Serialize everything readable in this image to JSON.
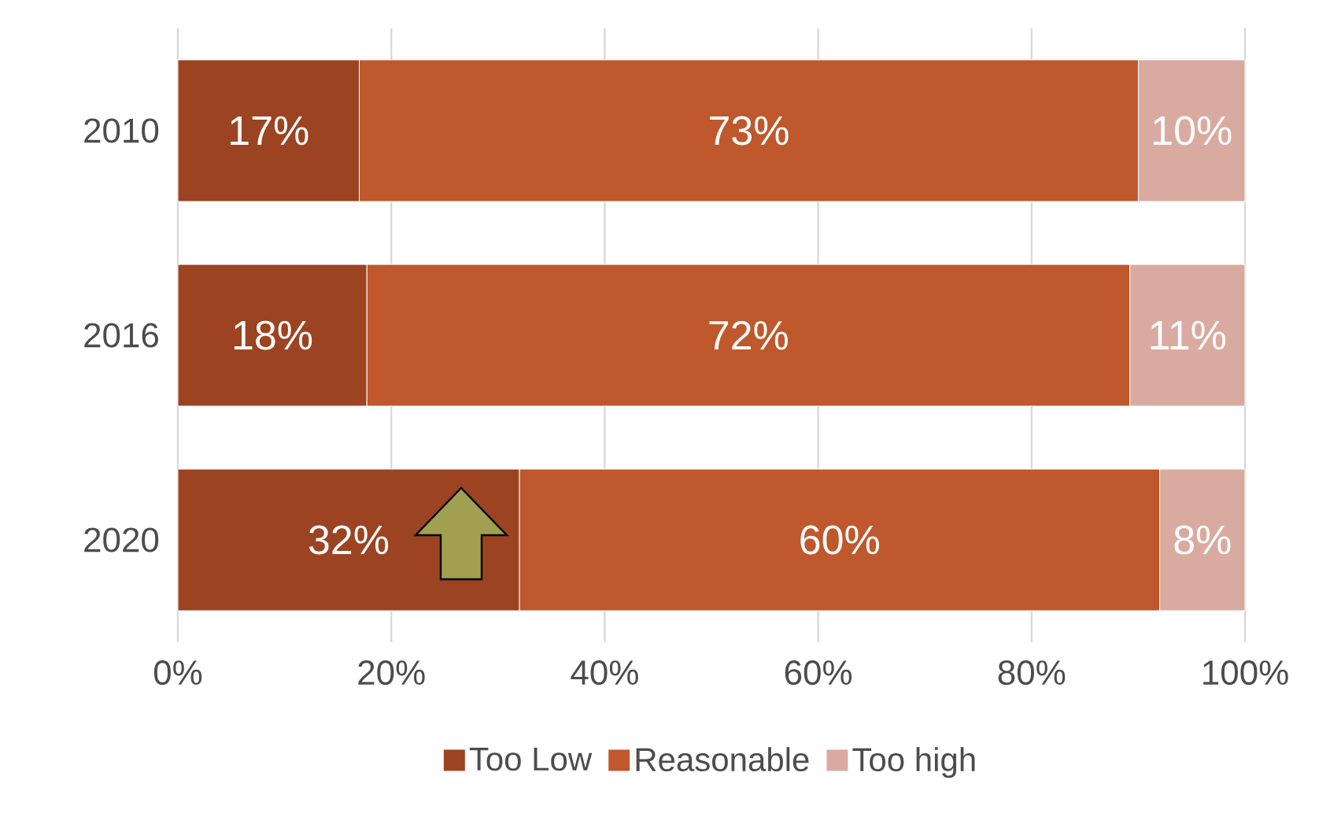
{
  "chart_data": {
    "type": "bar",
    "orientation": "horizontal",
    "stacked": true,
    "categories": [
      "2010",
      "2016",
      "2020"
    ],
    "series": [
      {
        "name": "Too Low",
        "color": "#9c4322",
        "values": [
          17,
          17.7,
          32
        ],
        "value_labels": [
          "17%",
          "18%",
          "32%"
        ]
      },
      {
        "name": "Reasonable",
        "color": "#bf582c",
        "values": [
          73,
          71.5,
          60
        ],
        "value_labels": [
          "73%",
          "72%",
          "60%"
        ]
      },
      {
        "name": "Too high",
        "color": "#d9aba0",
        "values": [
          10,
          10.8,
          8
        ],
        "value_labels": [
          "10%",
          "11%",
          "8%"
        ]
      }
    ],
    "xlim": [
      0,
      100
    ],
    "xticks": [
      {
        "value": 0,
        "label": "0%"
      },
      {
        "value": 20,
        "label": "20%"
      },
      {
        "value": 40,
        "label": "40%"
      },
      {
        "value": 60,
        "label": "60%"
      },
      {
        "value": 80,
        "label": "80%"
      },
      {
        "value": 100,
        "label": "100%"
      }
    ],
    "grid": "x",
    "legend": "bottom"
  }
}
